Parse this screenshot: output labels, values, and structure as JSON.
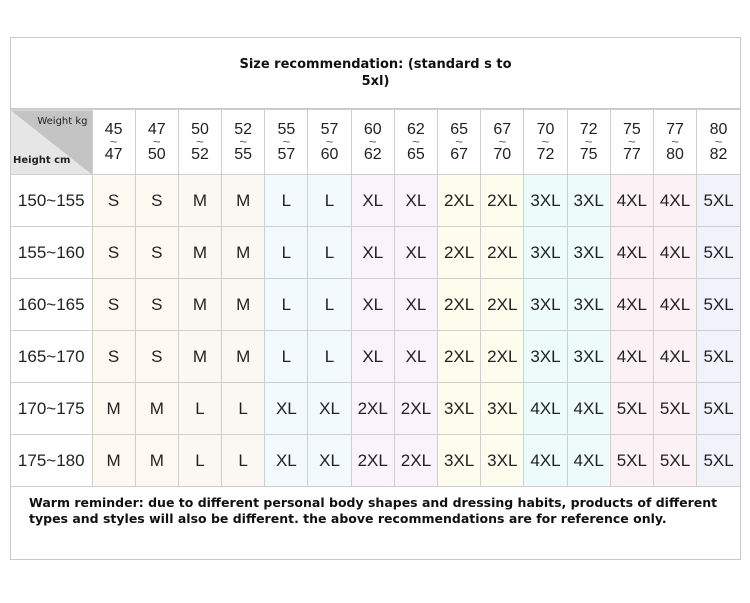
{
  "title": "Size recommendation: (standard s to 5xl)",
  "corner": {
    "weight_label": "Weight kg",
    "height_label": "Height cm"
  },
  "weights": [
    [
      "45",
      "47"
    ],
    [
      "47",
      "50"
    ],
    [
      "50",
      "52"
    ],
    [
      "52",
      "55"
    ],
    [
      "55",
      "57"
    ],
    [
      "57",
      "60"
    ],
    [
      "60",
      "62"
    ],
    [
      "62",
      "65"
    ],
    [
      "65",
      "67"
    ],
    [
      "67",
      "70"
    ],
    [
      "70",
      "72"
    ],
    [
      "72",
      "75"
    ],
    [
      "75",
      "77"
    ],
    [
      "77",
      "80"
    ],
    [
      "80",
      "82"
    ]
  ],
  "tilde": "~",
  "rows": [
    {
      "height": "150~155",
      "sizes": [
        "S",
        "S",
        "M",
        "M",
        "L",
        "L",
        "XL",
        "XL",
        "2XL",
        "2XL",
        "3XL",
        "3XL",
        "4XL",
        "4XL",
        "5XL"
      ]
    },
    {
      "height": "155~160",
      "sizes": [
        "S",
        "S",
        "M",
        "M",
        "L",
        "L",
        "XL",
        "XL",
        "2XL",
        "2XL",
        "3XL",
        "3XL",
        "4XL",
        "4XL",
        "5XL"
      ]
    },
    {
      "height": "160~165",
      "sizes": [
        "S",
        "S",
        "M",
        "M",
        "L",
        "L",
        "XL",
        "XL",
        "2XL",
        "2XL",
        "3XL",
        "3XL",
        "4XL",
        "4XL",
        "5XL"
      ]
    },
    {
      "height": "165~170",
      "sizes": [
        "S",
        "S",
        "M",
        "M",
        "L",
        "L",
        "XL",
        "XL",
        "2XL",
        "2XL",
        "3XL",
        "3XL",
        "4XL",
        "4XL",
        "5XL"
      ]
    },
    {
      "height": "170~175",
      "sizes": [
        "M",
        "M",
        "L",
        "L",
        "XL",
        "XL",
        "2XL",
        "2XL",
        "3XL",
        "3XL",
        "4XL",
        "4XL",
        "5XL",
        "5XL",
        "5XL"
      ]
    },
    {
      "height": "175~180",
      "sizes": [
        "M",
        "M",
        "L",
        "L",
        "XL",
        "XL",
        "2XL",
        "2XL",
        "3XL",
        "3XL",
        "4XL",
        "4XL",
        "5XL",
        "5XL",
        "5XL"
      ]
    }
  ],
  "column_colors": [
    "#fdf9f1",
    "#fdf9f1",
    "#fbf8f4",
    "#fbf8f4",
    "#f2fafd",
    "#f2fafd",
    "#fbf3fb",
    "#fbf3fb",
    "#fdfdee",
    "#fdfdee",
    "#eefbfb",
    "#eefbfb",
    "#fcf1f5",
    "#fcf1f5",
    "#f2f2fb"
  ],
  "footer": "Warm reminder: due to different personal body shapes and dressing habits, products of different types and styles will also be different. the above recommendations are for reference only."
}
